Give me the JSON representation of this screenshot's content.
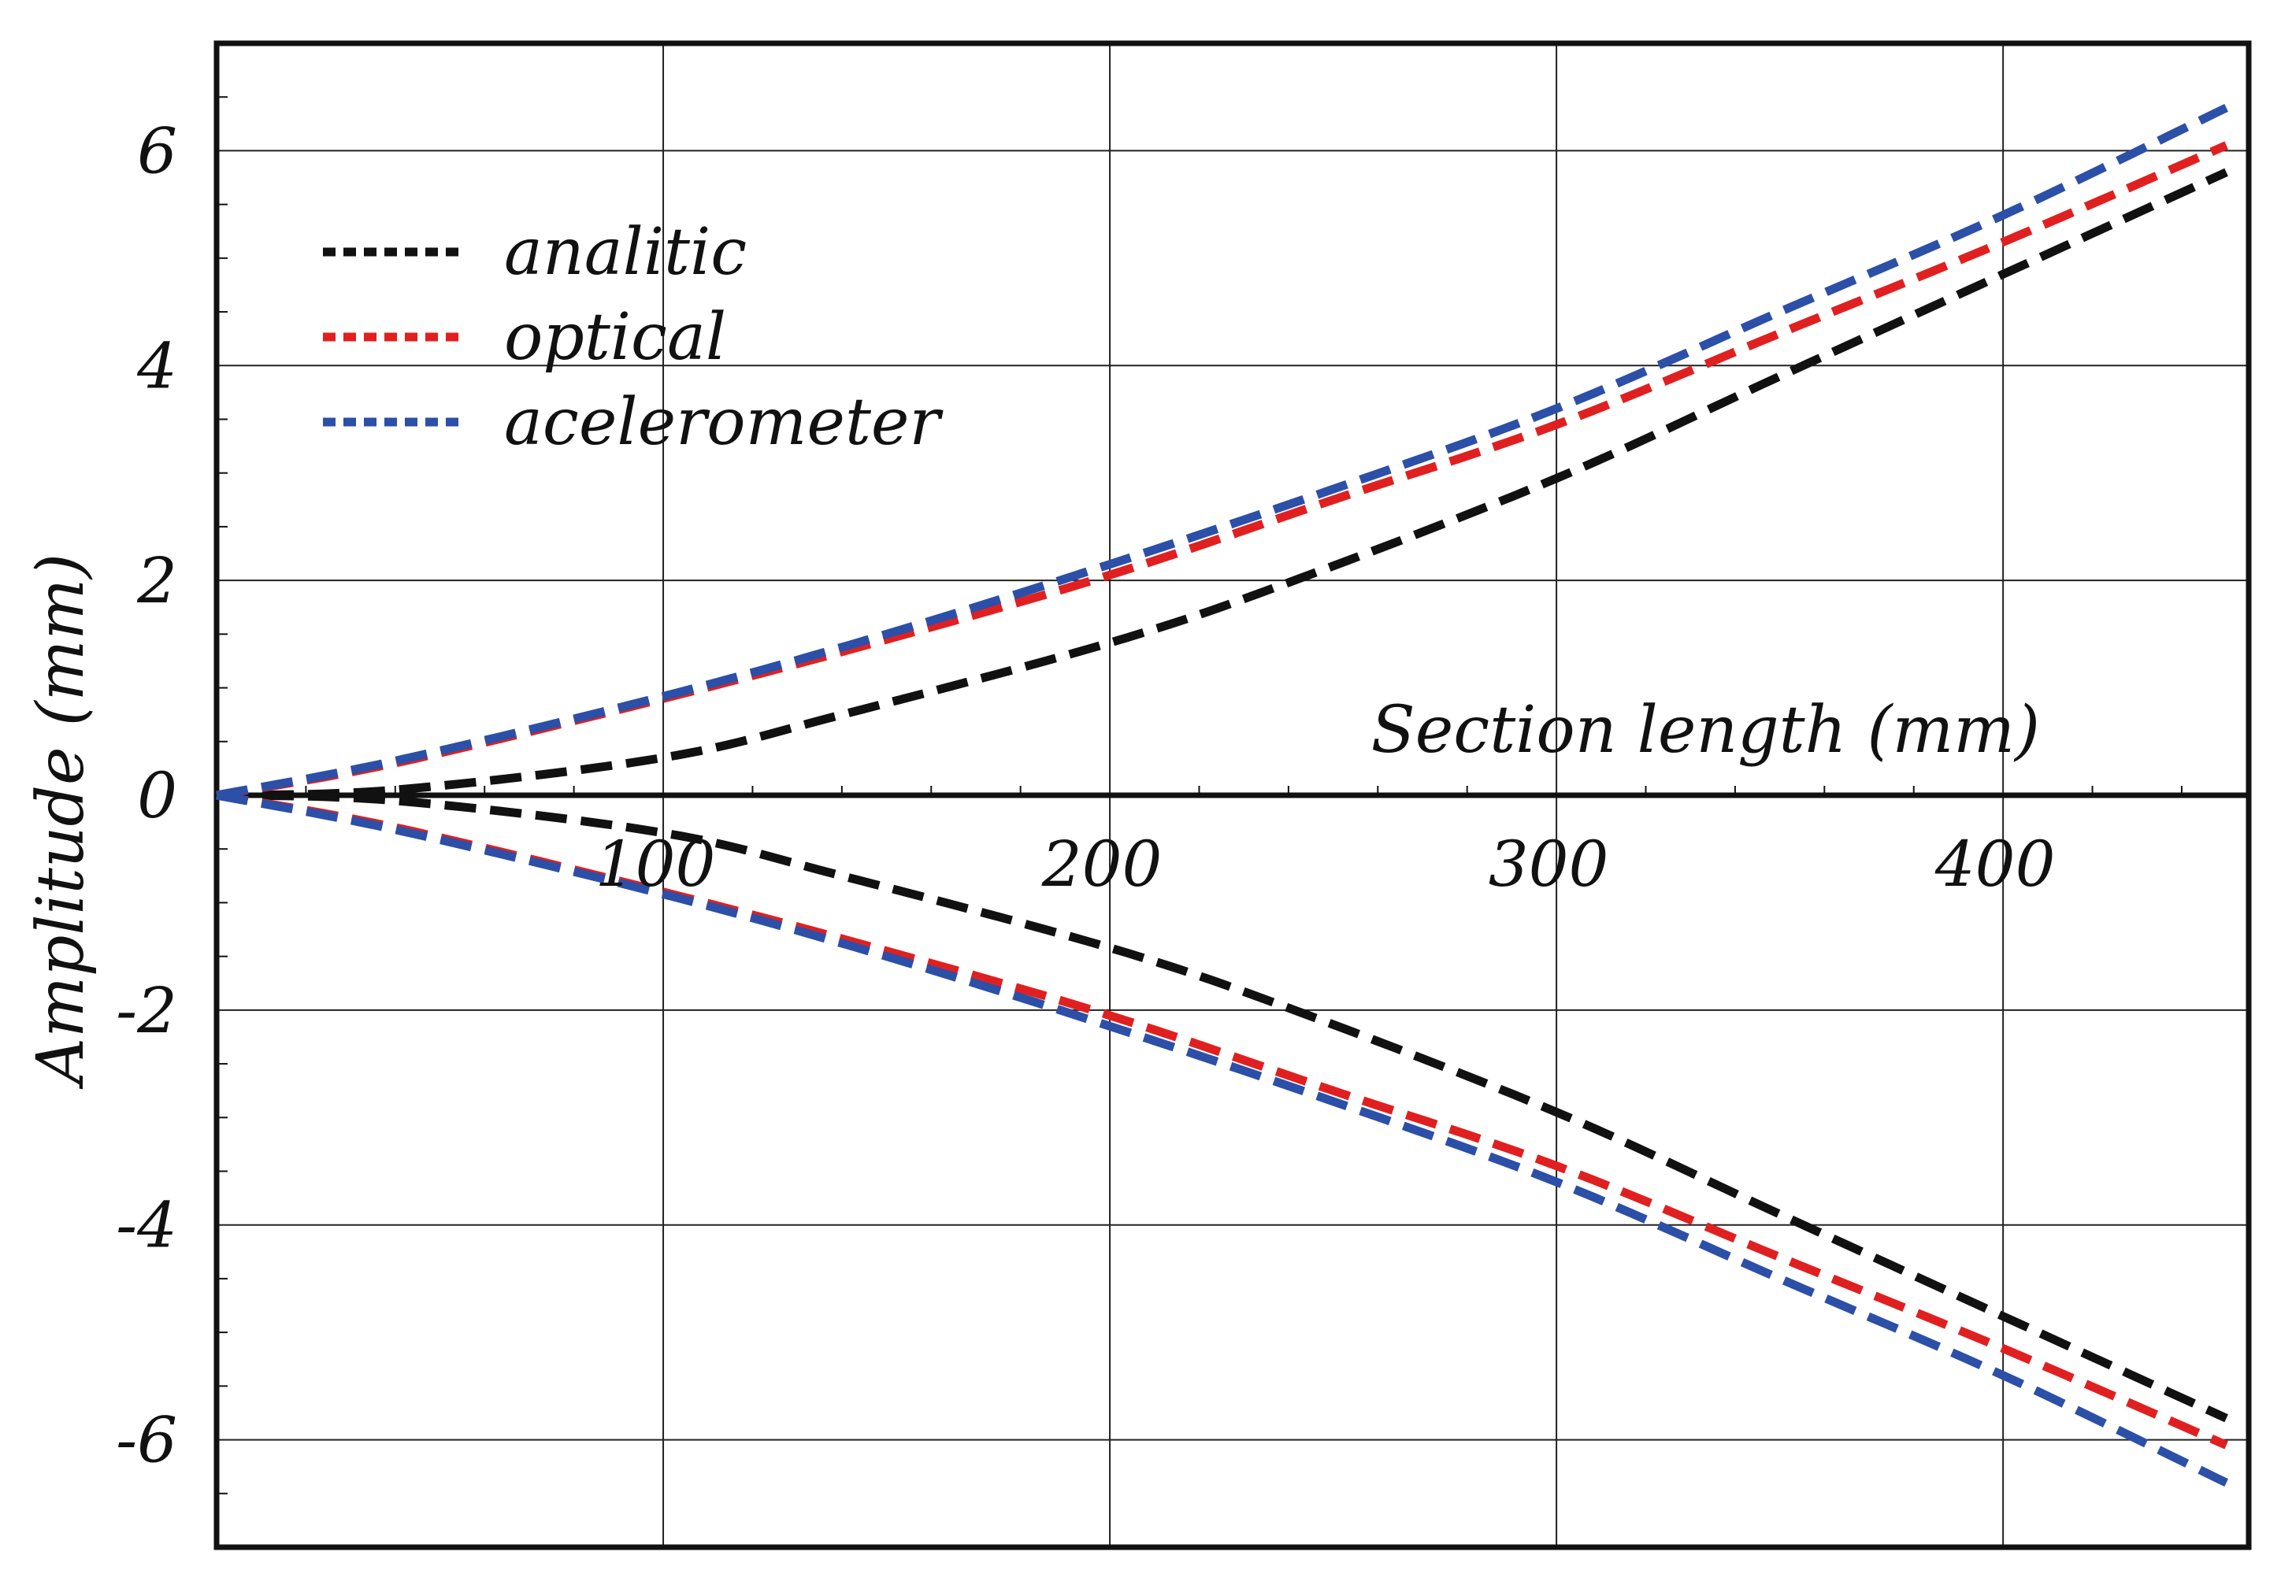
{
  "chart_data": {
    "type": "line",
    "title": "",
    "xlabel": "Section length (mm)",
    "ylabel": "Amplitude (mm)",
    "xlim": [
      0,
      455
    ],
    "ylim": [
      -7,
      7
    ],
    "x_ticks": [
      100,
      200,
      300,
      400
    ],
    "x_tick_labels": [
      "100",
      "200",
      "300",
      "400"
    ],
    "y_ticks": [
      -6,
      -4,
      -2,
      0,
      2,
      4,
      6
    ],
    "y_tick_labels": [
      "-6",
      "-4",
      "-2",
      "0",
      "2",
      "4",
      "6"
    ],
    "grid": true,
    "legend_position": "top-left",
    "line_style": "dashed",
    "series": [
      {
        "name": "analitic",
        "color": "#111111",
        "x": [
          0,
          40,
          100,
          140,
          200,
          240,
          300,
          350,
          400,
          450
        ],
        "y": [
          0,
          0.05,
          0.35,
          0.75,
          1.42,
          1.98,
          2.95,
          3.9,
          4.85,
          5.8
        ],
        "mirrored": true
      },
      {
        "name": "optical",
        "color": "#e02020",
        "x": [
          0,
          40,
          100,
          150,
          200,
          250,
          300,
          350,
          400,
          450
        ],
        "y": [
          0,
          0.3,
          0.9,
          1.45,
          2.05,
          2.75,
          3.45,
          4.3,
          5.15,
          6.05
        ],
        "mirrored": true
      },
      {
        "name": "acelerometer",
        "color": "#2c4fa8",
        "x": [
          0,
          40,
          100,
          150,
          200,
          250,
          300,
          350,
          400,
          450
        ],
        "y": [
          0,
          0.32,
          0.92,
          1.5,
          2.15,
          2.85,
          3.6,
          4.5,
          5.4,
          6.4
        ],
        "mirrored": true
      }
    ]
  }
}
